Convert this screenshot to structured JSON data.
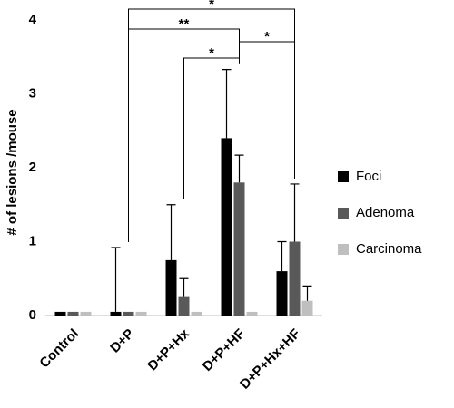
{
  "chart_data": {
    "type": "bar",
    "y_label": "# of lesions /mouse",
    "categories": [
      "Control",
      "D+P",
      "D+P+Hx",
      "D+P+HF",
      "D+P+Hx+HF"
    ],
    "series": [
      {
        "name": "Foci",
        "color": "#000000",
        "values": [
          0.05,
          0.05,
          0.75,
          2.4,
          0.6
        ],
        "errors": [
          null,
          0.87,
          0.75,
          0.93,
          0.4
        ]
      },
      {
        "name": "Adenoma",
        "color": "#595959",
        "values": [
          0.05,
          0.05,
          0.25,
          1.8,
          1.0
        ],
        "errors": [
          null,
          null,
          0.25,
          0.37,
          0.78
        ]
      },
      {
        "name": "Carcinoma",
        "color": "#bfbfbf",
        "values": [
          0.05,
          0.05,
          0.05,
          0.05,
          0.2
        ],
        "errors": [
          null,
          null,
          null,
          null,
          0.2
        ]
      }
    ],
    "ylim": [
      0,
      4
    ],
    "yticks": [
      0,
      1,
      2,
      3,
      4
    ],
    "grid": false,
    "legend": "right",
    "comparisons": [
      {
        "from": 1,
        "to": 4,
        "label": "*"
      },
      {
        "from": 1,
        "to": 3,
        "label": "**"
      },
      {
        "from": 3,
        "to": 4,
        "label": "*"
      },
      {
        "from": 2,
        "to": 3,
        "label": "*"
      }
    ]
  }
}
